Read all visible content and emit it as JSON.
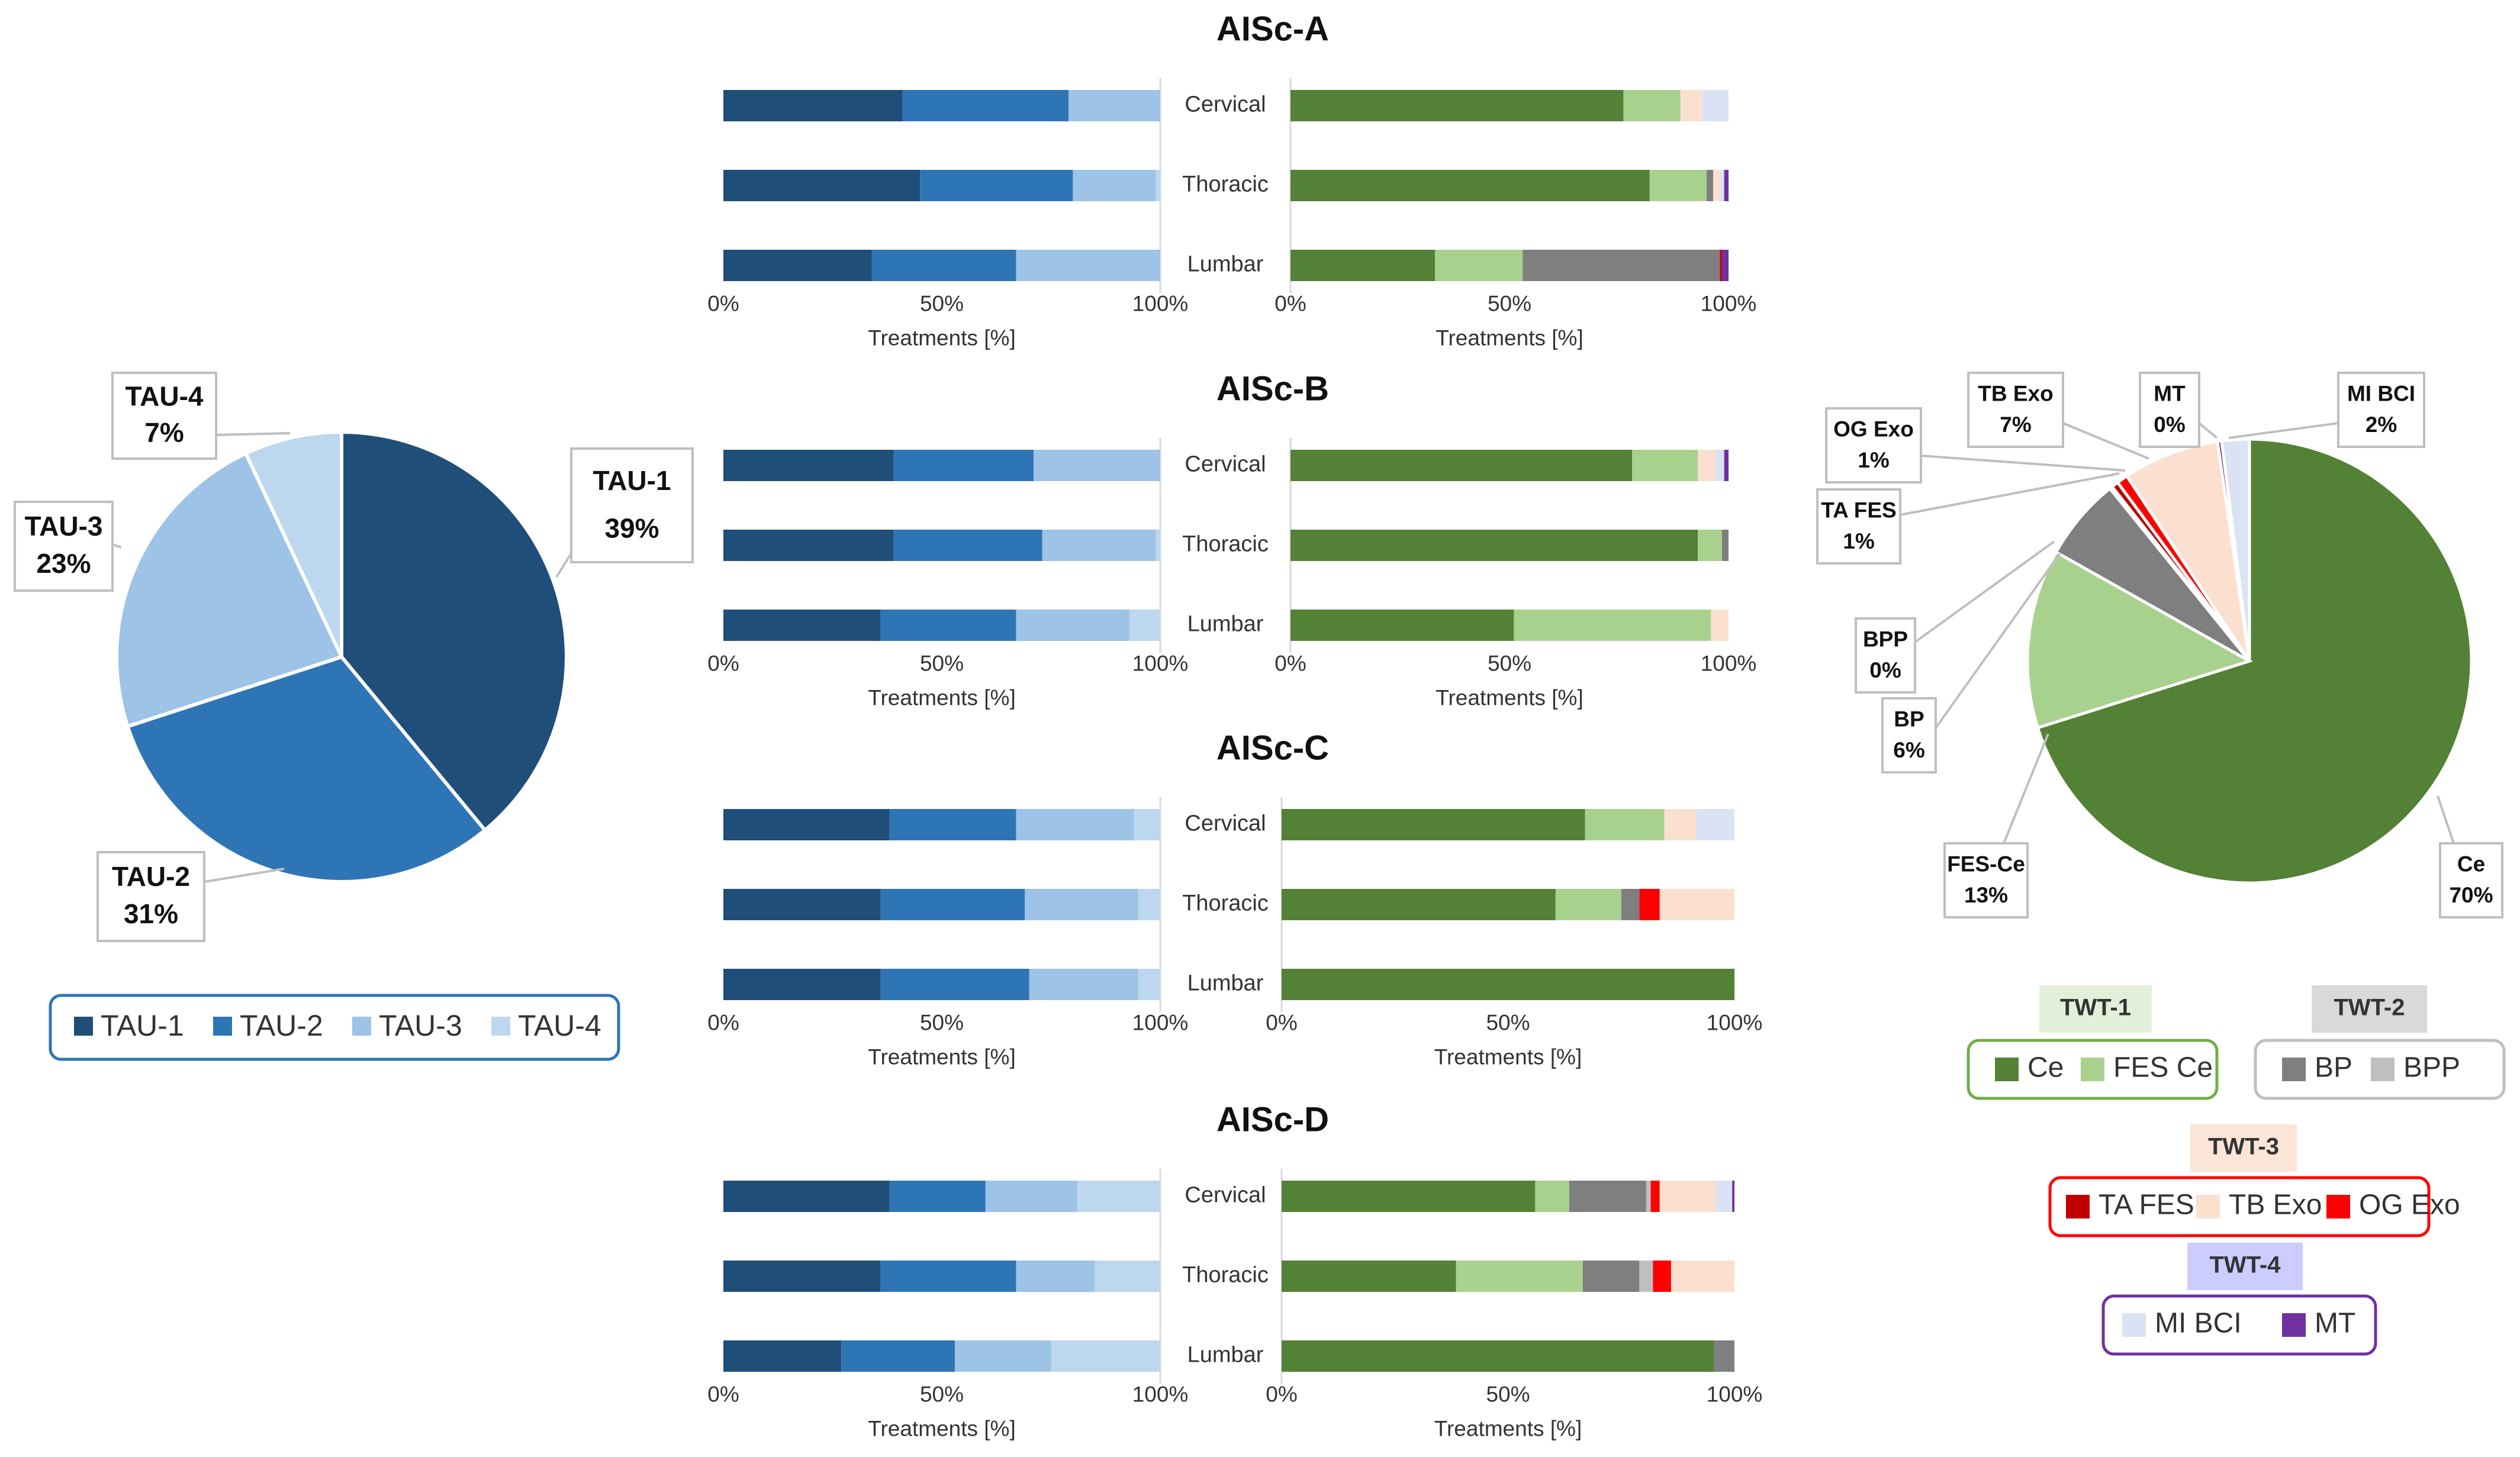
{
  "colors": {
    "TAU-1": "#1f4e79",
    "TAU-2": "#2e75b6",
    "TAU-3": "#9dc3e6",
    "TAU-4": "#bdd7ee",
    "Ce": "#538135",
    "FES Ce": "#a9d18e",
    "BP": "#7f7f7f",
    "BPP": "#bfbfbf",
    "TA FES": "#c00000",
    "TB Exo": "#fbe0d0",
    "OG Exo": "#ff0000",
    "MI BCI": "#dae3f3",
    "MT": "#7030a0"
  },
  "chart_data": [
    {
      "type": "pie",
      "id": "tau-pie",
      "labels": [
        "TAU-1",
        "TAU-2",
        "TAU-3",
        "TAU-4"
      ],
      "values": [
        39,
        31,
        23,
        7
      ],
      "value_labels": [
        "39%",
        "31%",
        "23%",
        "7%"
      ],
      "legend": [
        "TAU-1",
        "TAU-2",
        "TAU-3",
        "TAU-4"
      ]
    },
    {
      "type": "pie",
      "id": "twt-pie",
      "labels": [
        "Ce",
        "FES-Ce",
        "BP",
        "BPP",
        "TA FES",
        "OG Exo",
        "TB Exo",
        "MT",
        "MI BCI"
      ],
      "values": [
        70,
        13,
        6,
        0.2,
        0.5,
        0.8,
        7,
        0.3,
        2
      ],
      "value_labels": [
        "70%",
        "13%",
        "6%",
        "0%",
        "1%",
        "1%",
        "7%",
        "0%",
        "2%"
      ],
      "color_keys": [
        "Ce",
        "FES Ce",
        "BP",
        "BPP",
        "TA FES",
        "OG Exo",
        "TB Exo",
        "MT",
        "MI BCI"
      ]
    },
    {
      "type": "bar",
      "orientation": "horizontal-stacked-100",
      "title": "AISc-A",
      "categories": [
        "Cervical",
        "Thoracic",
        "Lumbar"
      ],
      "xlabel": "Treatments [%]",
      "ticks": [
        "0%",
        "50%",
        "100%"
      ],
      "tau": {
        "series": [
          "TAU-1",
          "TAU-2",
          "TAU-3",
          "TAU-4"
        ],
        "values": [
          [
            41,
            38,
            21,
            0
          ],
          [
            45,
            35,
            19,
            1
          ],
          [
            34,
            33,
            33,
            0
          ]
        ]
      },
      "twt": {
        "series": [
          "Ce",
          "FES Ce",
          "BP",
          "BPP",
          "TA FES",
          "OG Exo",
          "TB Exo",
          "MI BCI",
          "MT"
        ],
        "values": [
          [
            76,
            13,
            0,
            0,
            0,
            0,
            5,
            6,
            0
          ],
          [
            82,
            13,
            1.5,
            0,
            0,
            0,
            1.5,
            1,
            1
          ],
          [
            33,
            20,
            45,
            0,
            0.5,
            0,
            0,
            0,
            1.5
          ]
        ]
      }
    },
    {
      "type": "bar",
      "orientation": "horizontal-stacked-100",
      "title": "AISc-B",
      "categories": [
        "Cervical",
        "Thoracic",
        "Lumbar"
      ],
      "xlabel": "Treatments [%]",
      "ticks": [
        "0%",
        "50%",
        "100%"
      ],
      "tau": {
        "series": [
          "TAU-1",
          "TAU-2",
          "TAU-3",
          "TAU-4"
        ],
        "values": [
          [
            39,
            32,
            29,
            0
          ],
          [
            39,
            34,
            26,
            1
          ],
          [
            36,
            31,
            26,
            7
          ]
        ]
      },
      "twt": {
        "series": [
          "Ce",
          "FES Ce",
          "BP",
          "BPP",
          "TA FES",
          "OG Exo",
          "TB Exo",
          "MI BCI",
          "MT"
        ],
        "values": [
          [
            78,
            15,
            0,
            0,
            0,
            0,
            4,
            2,
            1
          ],
          [
            93,
            5.5,
            1.5,
            0,
            0,
            0,
            0,
            0,
            0
          ],
          [
            51,
            45,
            0,
            0,
            0,
            0,
            4,
            0,
            0
          ]
        ]
      }
    },
    {
      "type": "bar",
      "orientation": "horizontal-stacked-100",
      "title": "AISc-C",
      "categories": [
        "Cervical",
        "Thoracic",
        "Lumbar"
      ],
      "xlabel": "Treatments [%]",
      "ticks": [
        "0%",
        "50%",
        "100%"
      ],
      "tau": {
        "series": [
          "TAU-1",
          "TAU-2",
          "TAU-3",
          "TAU-4"
        ],
        "values": [
          [
            38,
            29,
            27,
            6
          ],
          [
            36,
            33,
            26,
            5
          ],
          [
            36,
            34,
            25,
            5
          ]
        ]
      },
      "twt": {
        "series": [
          "Ce",
          "FES Ce",
          "BP",
          "BPP",
          "TA FES",
          "OG Exo",
          "TB Exo",
          "MI BCI",
          "MT"
        ],
        "values": [
          [
            67,
            17.5,
            0,
            0,
            0,
            0,
            7,
            8.5,
            0
          ],
          [
            60.5,
            14.5,
            4,
            0,
            0,
            4.5,
            16.5,
            0,
            0
          ],
          [
            100,
            0,
            0,
            0,
            0,
            0,
            0,
            0,
            0
          ]
        ]
      }
    },
    {
      "type": "bar",
      "orientation": "horizontal-stacked-100",
      "title": "AISc-D",
      "categories": [
        "Cervical",
        "Thoracic",
        "Lumbar"
      ],
      "xlabel": "Treatments [%]",
      "ticks": [
        "0%",
        "50%",
        "100%"
      ],
      "tau": {
        "series": [
          "TAU-1",
          "TAU-2",
          "TAU-3",
          "TAU-4"
        ],
        "values": [
          [
            38,
            22,
            21,
            19
          ],
          [
            36,
            31,
            18,
            15
          ],
          [
            27,
            26,
            22,
            25
          ]
        ]
      },
      "twt": {
        "series": [
          "Ce",
          "FES Ce",
          "BP",
          "BPP",
          "TA FES",
          "OG Exo",
          "TB Exo",
          "MI BCI",
          "MT"
        ],
        "values": [
          [
            56,
            7.5,
            17,
            1,
            0,
            2,
            12.5,
            3.5,
            0.5
          ],
          [
            38.5,
            28,
            12.5,
            3,
            0,
            4,
            14,
            0,
            0
          ],
          [
            95.5,
            0,
            4.5,
            0,
            0,
            0,
            0,
            0,
            0
          ]
        ]
      }
    }
  ],
  "legends": {
    "tau": [
      "TAU-1",
      "TAU-2",
      "TAU-3",
      "TAU-4"
    ],
    "twt_groups": [
      {
        "title": "TWT-1",
        "items": [
          "Ce",
          "FES Ce"
        ],
        "border": "#70ad47",
        "fill": "#e2f0d9"
      },
      {
        "title": "TWT-2",
        "items": [
          "BP",
          "BPP"
        ],
        "border": "#bfbfbf",
        "fill": "#d9d9d9"
      },
      {
        "title": "TWT-3",
        "items": [
          "TA FES",
          "TB Exo",
          "OG Exo"
        ],
        "border": "#ff0000",
        "fill": "#fbe5d6"
      },
      {
        "title": "TWT-4",
        "items": [
          "MI BCI",
          "MT"
        ],
        "border": "#7030a0",
        "fill": "#ccccff"
      }
    ]
  }
}
